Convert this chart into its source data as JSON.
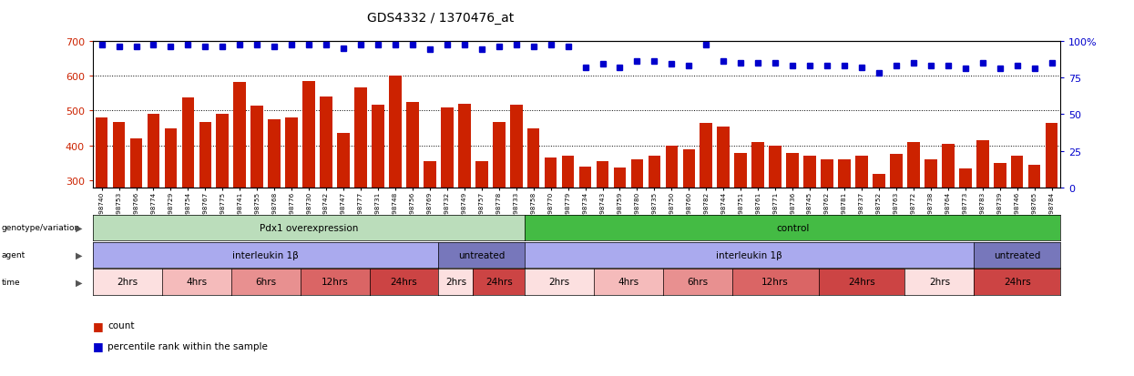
{
  "title": "GDS4332 / 1370476_at",
  "samples": [
    "GSM998740",
    "GSM998753",
    "GSM998766",
    "GSM998774",
    "GSM998729",
    "GSM998754",
    "GSM998767",
    "GSM998775",
    "GSM998741",
    "GSM998755",
    "GSM998768",
    "GSM998776",
    "GSM998730",
    "GSM998742",
    "GSM998747",
    "GSM998777",
    "GSM998731",
    "GSM998748",
    "GSM998756",
    "GSM998769",
    "GSM998732",
    "GSM998749",
    "GSM998757",
    "GSM998778",
    "GSM998733",
    "GSM998758",
    "GSM998770",
    "GSM998779",
    "GSM998734",
    "GSM998743",
    "GSM998759",
    "GSM998780",
    "GSM998735",
    "GSM998750",
    "GSM998760",
    "GSM998782",
    "GSM998744",
    "GSM998751",
    "GSM998761",
    "GSM998771",
    "GSM998736",
    "GSM998745",
    "GSM998762",
    "GSM998781",
    "GSM998737",
    "GSM998752",
    "GSM998763",
    "GSM998772",
    "GSM998738",
    "GSM998764",
    "GSM998773",
    "GSM998783",
    "GSM998739",
    "GSM998746",
    "GSM998765",
    "GSM998784"
  ],
  "bar_values": [
    480,
    468,
    420,
    490,
    448,
    537,
    467,
    492,
    583,
    515,
    475,
    480,
    585,
    540,
    437,
    567,
    516,
    600,
    524,
    355,
    508,
    519,
    355,
    467,
    518,
    450,
    365,
    370,
    340,
    355,
    338,
    360,
    370,
    400,
    390,
    465,
    455,
    380,
    410,
    400,
    380,
    370,
    360,
    360,
    370,
    318,
    375,
    410,
    360,
    405,
    335,
    415,
    350,
    370,
    345,
    465
  ],
  "percentile_values": [
    97,
    96,
    96,
    97,
    96,
    97,
    96,
    96,
    97,
    97,
    96,
    97,
    97,
    97,
    95,
    97,
    97,
    97,
    97,
    94,
    97,
    97,
    94,
    96,
    97,
    96,
    97,
    96,
    82,
    84,
    82,
    86,
    86,
    84,
    83,
    97,
    86,
    85,
    85,
    85,
    83,
    83,
    83,
    83,
    82,
    78,
    83,
    85,
    83,
    83,
    81,
    85,
    81,
    83,
    81,
    85
  ],
  "ylim_left": [
    280,
    700
  ],
  "ylim_right": [
    0,
    100
  ],
  "yticks_left": [
    300,
    400,
    500,
    600,
    700
  ],
  "yticks_right": [
    0,
    25,
    50,
    75,
    100
  ],
  "bar_color": "#cc2200",
  "dot_color": "#0000cc",
  "groups": [
    {
      "label": "Pdx1 overexpression",
      "start": 0,
      "end": 25,
      "color": "#bbddbb"
    },
    {
      "label": "control",
      "start": 25,
      "end": 56,
      "color": "#44bb44"
    }
  ],
  "agents": [
    {
      "label": "interleukin 1β",
      "start": 0,
      "end": 20,
      "color": "#aaaaee"
    },
    {
      "label": "untreated",
      "start": 20,
      "end": 25,
      "color": "#7777bb"
    },
    {
      "label": "interleukin 1β",
      "start": 25,
      "end": 51,
      "color": "#aaaaee"
    },
    {
      "label": "untreated",
      "start": 51,
      "end": 56,
      "color": "#7777bb"
    }
  ],
  "times": [
    {
      "label": "2hrs",
      "start": 0,
      "end": 4,
      "color": "#fce0e0"
    },
    {
      "label": "4hrs",
      "start": 4,
      "end": 8,
      "color": "#f5bbbb"
    },
    {
      "label": "6hrs",
      "start": 8,
      "end": 12,
      "color": "#e89090"
    },
    {
      "label": "12hrs",
      "start": 12,
      "end": 16,
      "color": "#da6565"
    },
    {
      "label": "24hrs",
      "start": 16,
      "end": 20,
      "color": "#cc4444"
    },
    {
      "label": "2hrs",
      "start": 20,
      "end": 22,
      "color": "#fce0e0"
    },
    {
      "label": "24hrs",
      "start": 22,
      "end": 25,
      "color": "#cc4444"
    },
    {
      "label": "2hrs",
      "start": 25,
      "end": 29,
      "color": "#fce0e0"
    },
    {
      "label": "4hrs",
      "start": 29,
      "end": 33,
      "color": "#f5bbbb"
    },
    {
      "label": "6hrs",
      "start": 33,
      "end": 37,
      "color": "#e89090"
    },
    {
      "label": "12hrs",
      "start": 37,
      "end": 42,
      "color": "#da6565"
    },
    {
      "label": "24hrs",
      "start": 42,
      "end": 47,
      "color": "#cc4444"
    },
    {
      "label": "2hrs",
      "start": 47,
      "end": 51,
      "color": "#fce0e0"
    },
    {
      "label": "24hrs",
      "start": 51,
      "end": 56,
      "color": "#cc4444"
    }
  ]
}
